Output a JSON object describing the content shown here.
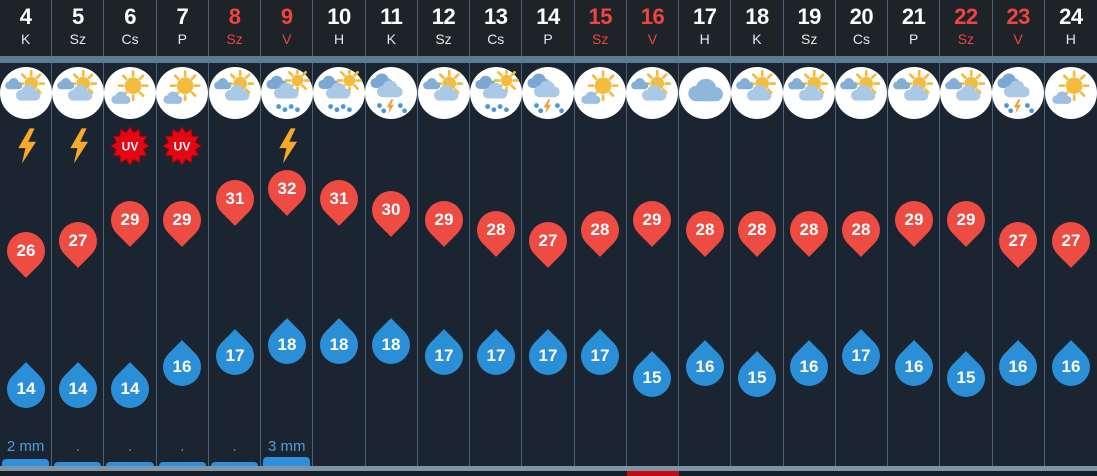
{
  "uv_label": "UV",
  "days": [
    {
      "date": "4",
      "dow": "K",
      "weekend": false,
      "icon": "partly-cloudy",
      "badge": "lightning",
      "high": 26,
      "low": 14,
      "precip_label": "2 mm",
      "precip_bar": "medium"
    },
    {
      "date": "5",
      "dow": "Sz",
      "weekend": false,
      "icon": "partly-cloudy",
      "badge": "lightning",
      "high": 27,
      "low": 14,
      "precip_label": ".",
      "precip_bar": "small"
    },
    {
      "date": "6",
      "dow": "Cs",
      "weekend": false,
      "icon": "sun-cloud",
      "badge": "uv",
      "high": 29,
      "low": 14,
      "precip_label": ".",
      "precip_bar": "small"
    },
    {
      "date": "7",
      "dow": "P",
      "weekend": false,
      "icon": "sun-cloud",
      "badge": "uv",
      "high": 29,
      "low": 16,
      "precip_label": ".",
      "precip_bar": "small"
    },
    {
      "date": "8",
      "dow": "Sz",
      "weekend": true,
      "icon": "partly-cloudy",
      "badge": "",
      "high": 31,
      "low": 17,
      "precip_label": ".",
      "precip_bar": "small"
    },
    {
      "date": "9",
      "dow": "V",
      "weekend": true,
      "icon": "rain-sun",
      "badge": "lightning",
      "high": 32,
      "low": 18,
      "precip_label": "3 mm",
      "precip_bar": "large"
    },
    {
      "date": "10",
      "dow": "H",
      "weekend": false,
      "icon": "rain-sun",
      "badge": "",
      "high": 31,
      "low": 18,
      "precip_label": "",
      "precip_bar": "none"
    },
    {
      "date": "11",
      "dow": "K",
      "weekend": false,
      "icon": "rain-thunder",
      "badge": "",
      "high": 30,
      "low": 18,
      "precip_label": "",
      "precip_bar": "none"
    },
    {
      "date": "12",
      "dow": "Sz",
      "weekend": false,
      "icon": "partly-cloudy",
      "badge": "",
      "high": 29,
      "low": 17,
      "precip_label": "",
      "precip_bar": "none"
    },
    {
      "date": "13",
      "dow": "Cs",
      "weekend": false,
      "icon": "rain-sun",
      "badge": "",
      "high": 28,
      "low": 17,
      "precip_label": "",
      "precip_bar": "none"
    },
    {
      "date": "14",
      "dow": "P",
      "weekend": false,
      "icon": "rain-thunder",
      "badge": "",
      "high": 27,
      "low": 17,
      "precip_label": "",
      "precip_bar": "none"
    },
    {
      "date": "15",
      "dow": "Sz",
      "weekend": true,
      "icon": "sun-cloud",
      "badge": "",
      "high": 28,
      "low": 17,
      "precip_label": "",
      "precip_bar": "none"
    },
    {
      "date": "16",
      "dow": "V",
      "weekend": true,
      "icon": "partly-cloudy",
      "badge": "",
      "high": 29,
      "low": 15,
      "precip_label": "",
      "precip_bar": "none"
    },
    {
      "date": "17",
      "dow": "H",
      "weekend": false,
      "icon": "cloudy",
      "badge": "",
      "high": 28,
      "low": 16,
      "precip_label": "",
      "precip_bar": "none"
    },
    {
      "date": "18",
      "dow": "K",
      "weekend": false,
      "icon": "partly-cloudy",
      "badge": "",
      "high": 28,
      "low": 15,
      "precip_label": "",
      "precip_bar": "none"
    },
    {
      "date": "19",
      "dow": "Sz",
      "weekend": false,
      "icon": "partly-cloudy",
      "badge": "",
      "high": 28,
      "low": 16,
      "precip_label": "",
      "precip_bar": "none"
    },
    {
      "date": "20",
      "dow": "Cs",
      "weekend": false,
      "icon": "partly-cloudy",
      "badge": "",
      "high": 28,
      "low": 17,
      "precip_label": "",
      "precip_bar": "none"
    },
    {
      "date": "21",
      "dow": "P",
      "weekend": false,
      "icon": "partly-cloudy",
      "badge": "",
      "high": 29,
      "low": 16,
      "precip_label": "",
      "precip_bar": "none"
    },
    {
      "date": "22",
      "dow": "Sz",
      "weekend": true,
      "icon": "partly-cloudy",
      "badge": "",
      "high": 29,
      "low": 15,
      "precip_label": "",
      "precip_bar": "none"
    },
    {
      "date": "23",
      "dow": "V",
      "weekend": true,
      "icon": "rain-thunder",
      "badge": "",
      "high": 27,
      "low": 16,
      "precip_label": "",
      "precip_bar": "none"
    },
    {
      "date": "24",
      "dow": "H",
      "weekend": false,
      "icon": "sun-cloud",
      "badge": "",
      "high": 27,
      "low": 16,
      "precip_label": "",
      "precip_bar": "none"
    }
  ],
  "scrollbar": {
    "highlight_day": "16"
  },
  "colors": {
    "high_marker": "#ee4b42",
    "low_marker": "#2b8fd8",
    "weekend_text": "#ef4540",
    "precip_bar": "#2e90dc",
    "precip_text": "#4aa0d8",
    "uv_badge": "#e40613",
    "lightning_badge": "#f8a928",
    "baseline": "#7e95a8",
    "header_bg": "#1e2328",
    "body_bg": "#1a2531"
  }
}
